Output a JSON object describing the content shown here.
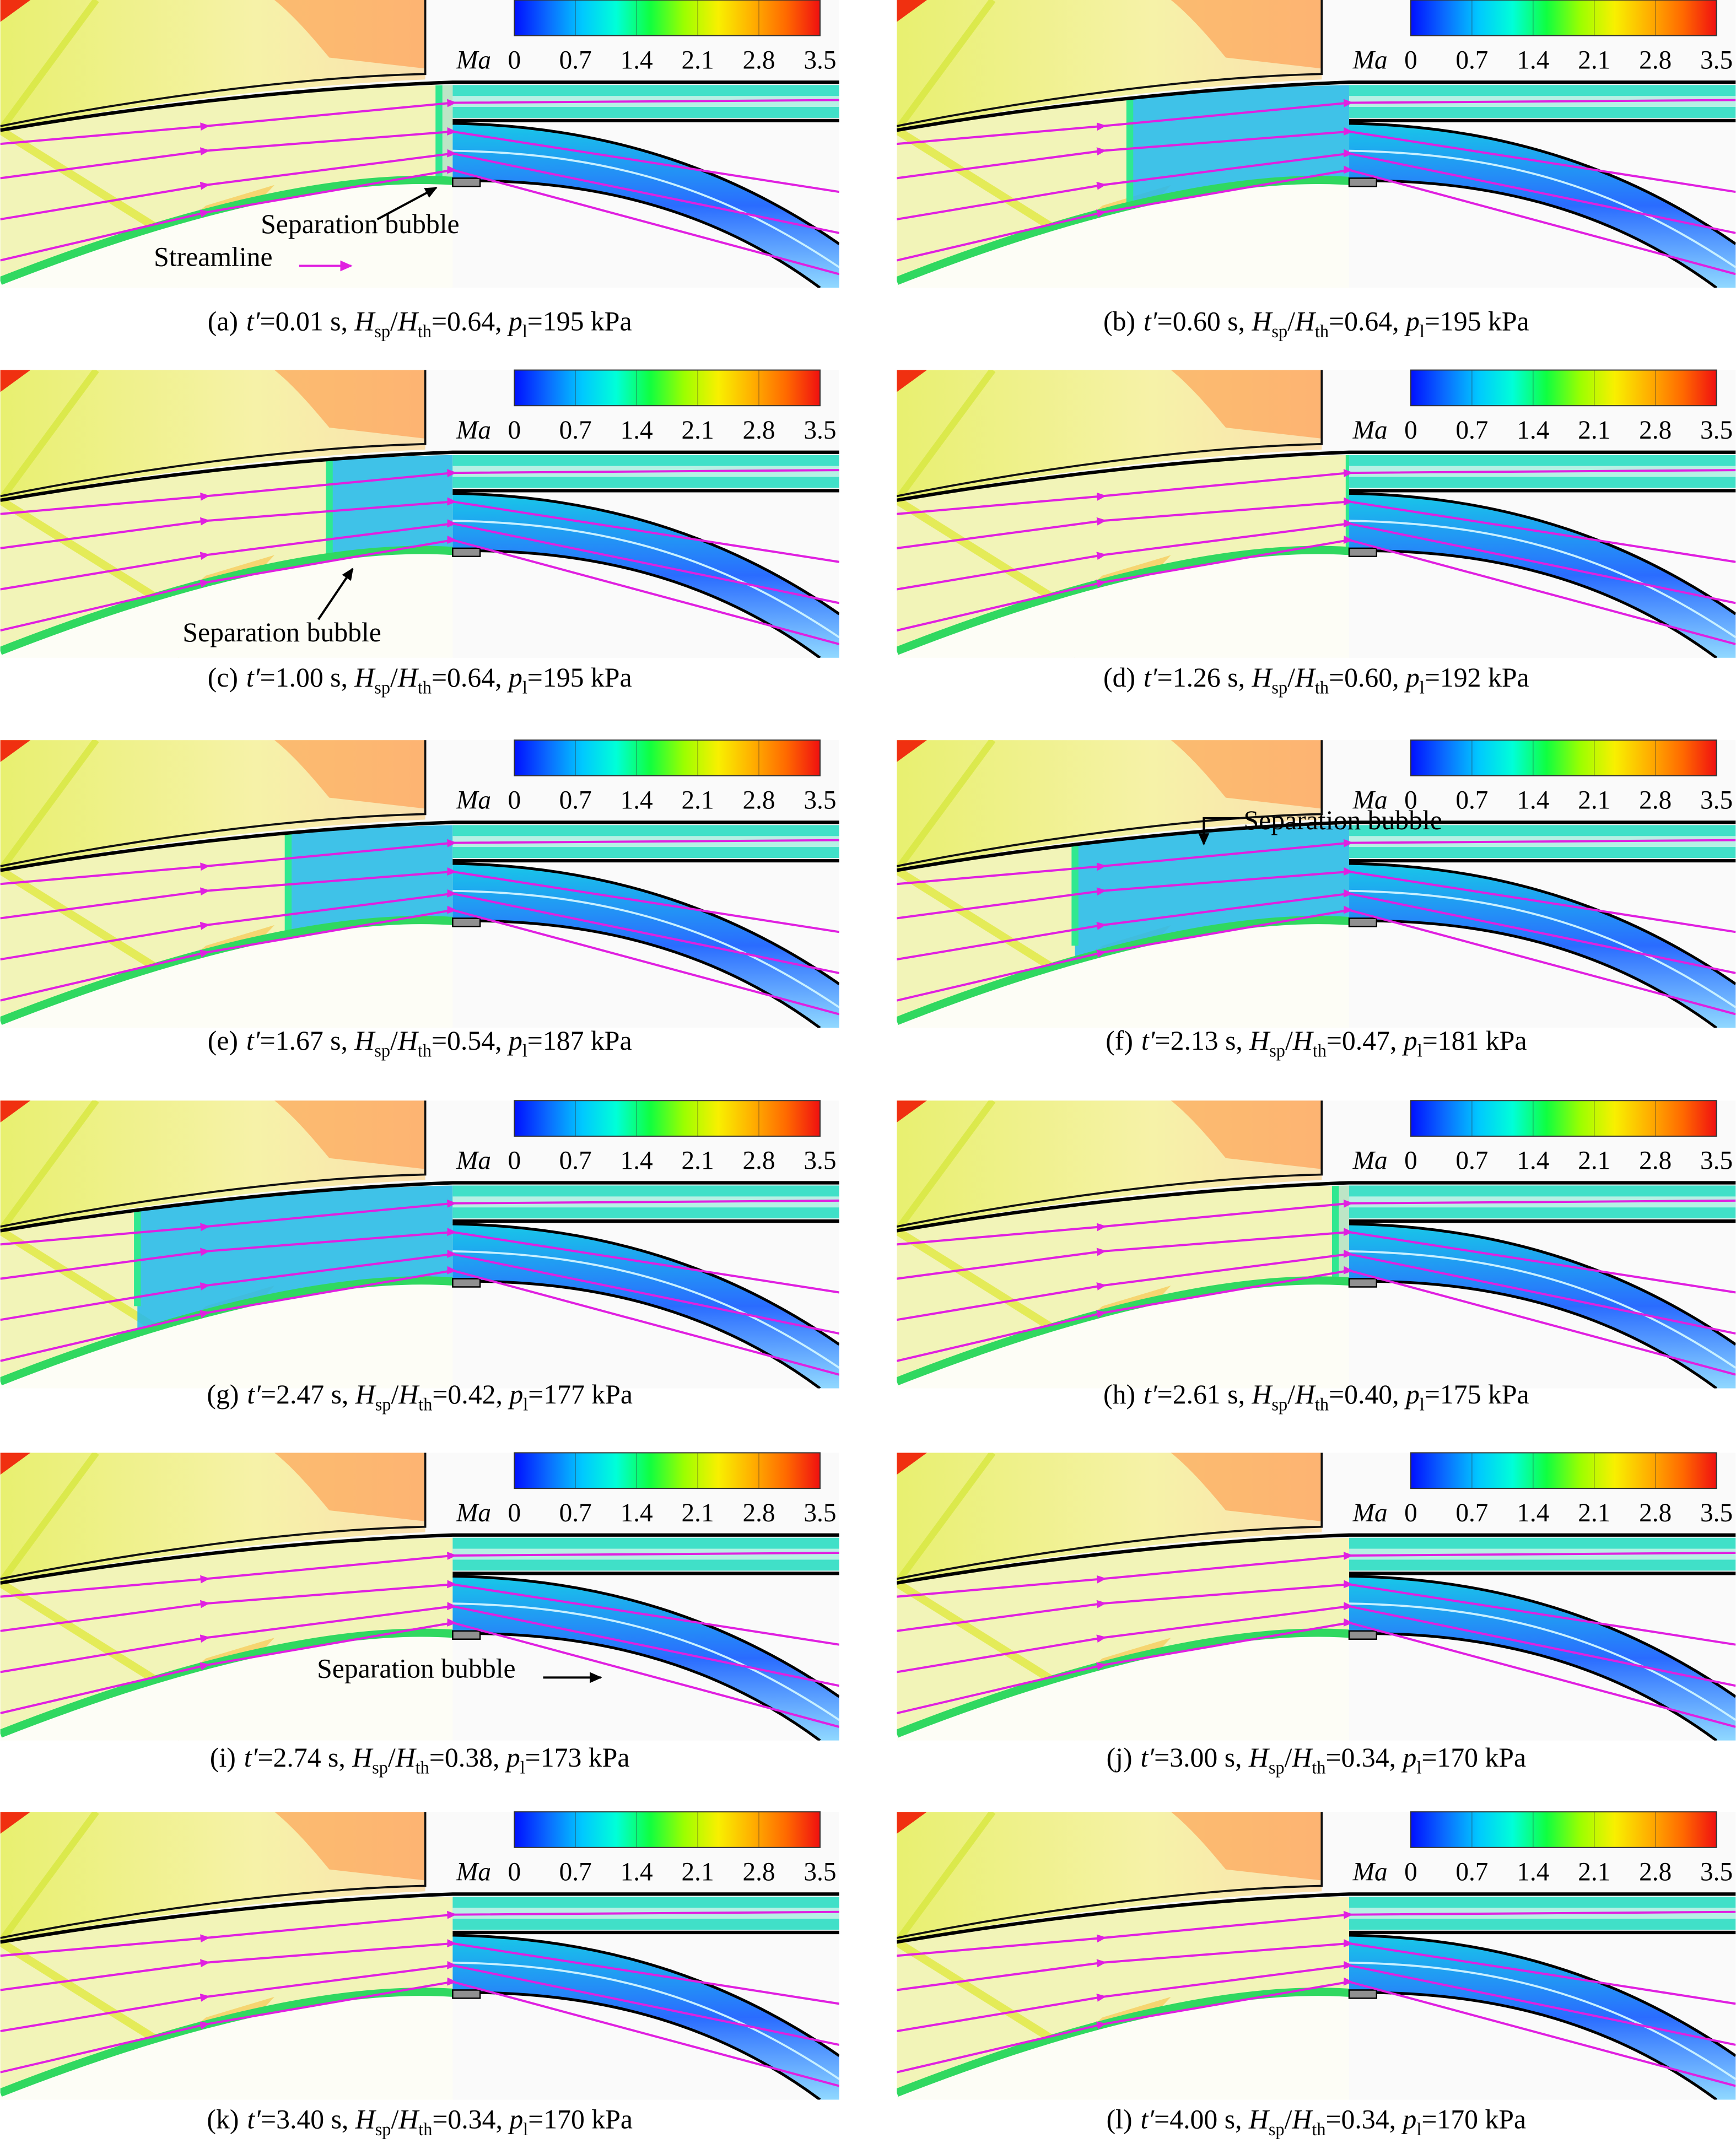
{
  "figure": {
    "colorbar": {
      "label": "Ma",
      "lim": [
        0,
        3.5
      ],
      "ticks": [
        0,
        0.7,
        1.4,
        2.1,
        2.8,
        3.5
      ],
      "colors": [
        "#0010ff",
        "#0a6cff",
        "#00c8ff",
        "#00ffd8",
        "#10ff40",
        "#9cff00",
        "#f8f000",
        "#ffb000",
        "#ff6a00",
        "#f01010"
      ]
    },
    "caption_template": [
      {
        "text": "t′",
        "style": "italic"
      },
      {
        "text": "="
      },
      {
        "field": "t"
      },
      {
        "text": " s, "
      },
      {
        "text": "H",
        "style": "italic"
      },
      {
        "text": "sp",
        "style": "sub"
      },
      {
        "text": "/"
      },
      {
        "text": "H",
        "style": "italic"
      },
      {
        "text": "th",
        "style": "sub"
      },
      {
        "text": "="
      },
      {
        "field": "H_ratio"
      },
      {
        "text": ", "
      },
      {
        "text": "p",
        "style": "italic"
      },
      {
        "text": "l",
        "style": "sub"
      },
      {
        "text": "="
      },
      {
        "field": "p"
      },
      {
        "text": " kPa"
      }
    ],
    "panels": [
      {
        "label": "(a)",
        "t": "0.01",
        "H_ratio": "0.64",
        "p": "195",
        "annotations": [
          "Separation bubble",
          "Streamline"
        ]
      },
      {
        "label": "(b)",
        "t": "0.60",
        "H_ratio": "0.64",
        "p": "195"
      },
      {
        "label": "(c)",
        "t": "1.00",
        "H_ratio": "0.64",
        "p": "195",
        "annotations": [
          "Separation bubble"
        ]
      },
      {
        "label": "(d)",
        "t": "1.26",
        "H_ratio": "0.60",
        "p": "192"
      },
      {
        "label": "(e)",
        "t": "1.67",
        "H_ratio": "0.54",
        "p": "187"
      },
      {
        "label": "(f)",
        "t": "2.13",
        "H_ratio": "0.47",
        "p": "181",
        "annotations": [
          "Separation bubble"
        ]
      },
      {
        "label": "(g)",
        "t": "2.47",
        "H_ratio": "0.42",
        "p": "177"
      },
      {
        "label": "(h)",
        "t": "2.61",
        "H_ratio": "0.40",
        "p": "175"
      },
      {
        "label": "(i)",
        "t": "2.74",
        "H_ratio": "0.38",
        "p": "173",
        "annotations": [
          "Separation bubble"
        ]
      },
      {
        "label": "(j)",
        "t": "3.00",
        "H_ratio": "0.34",
        "p": "170"
      },
      {
        "label": "(k)",
        "t": "3.40",
        "H_ratio": "0.34",
        "p": "170"
      },
      {
        "label": "(l)",
        "t": "4.00",
        "H_ratio": "0.34",
        "p": "170"
      }
    ]
  }
}
